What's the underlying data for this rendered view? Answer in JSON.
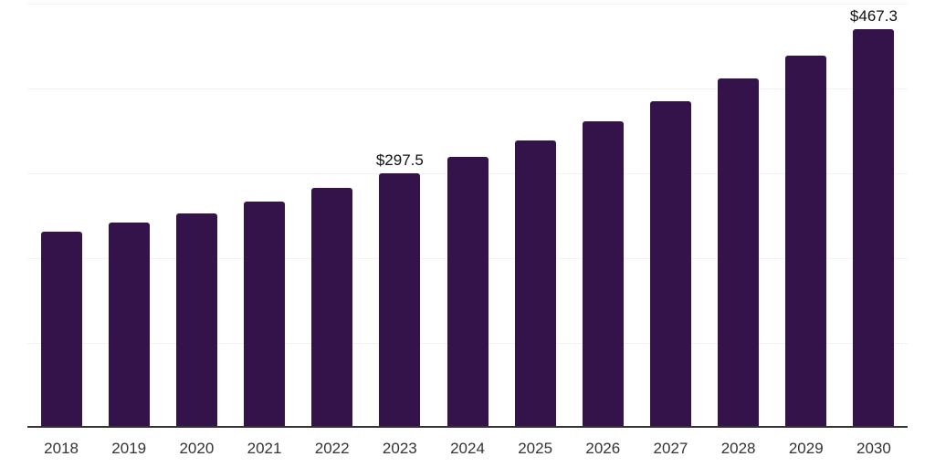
{
  "chart_data": {
    "type": "bar",
    "title": "",
    "xlabel": "",
    "ylabel": "",
    "categories": [
      "2018",
      "2019",
      "2020",
      "2021",
      "2022",
      "2023",
      "2024",
      "2025",
      "2026",
      "2027",
      "2028",
      "2029",
      "2030"
    ],
    "values": [
      228.7,
      239.3,
      250.9,
      265.0,
      280.9,
      297.5,
      317.3,
      337.0,
      359.5,
      382.7,
      409.3,
      436.9,
      467.3
    ],
    "data_labels": {
      "2023": "$297.5",
      "2030": "$467.3"
    },
    "ylim": [
      0,
      500
    ],
    "gridline_values": [
      100,
      200,
      300,
      400,
      500
    ],
    "y_tick_labels_visible": false,
    "grid": "horizontal",
    "legend": "none",
    "colors": {
      "bar": "#331349",
      "axis": "#333333",
      "gridline": "#f2f2f4",
      "tick_label": "#333333",
      "value_label": "#111111",
      "background": "#ffffff"
    }
  }
}
